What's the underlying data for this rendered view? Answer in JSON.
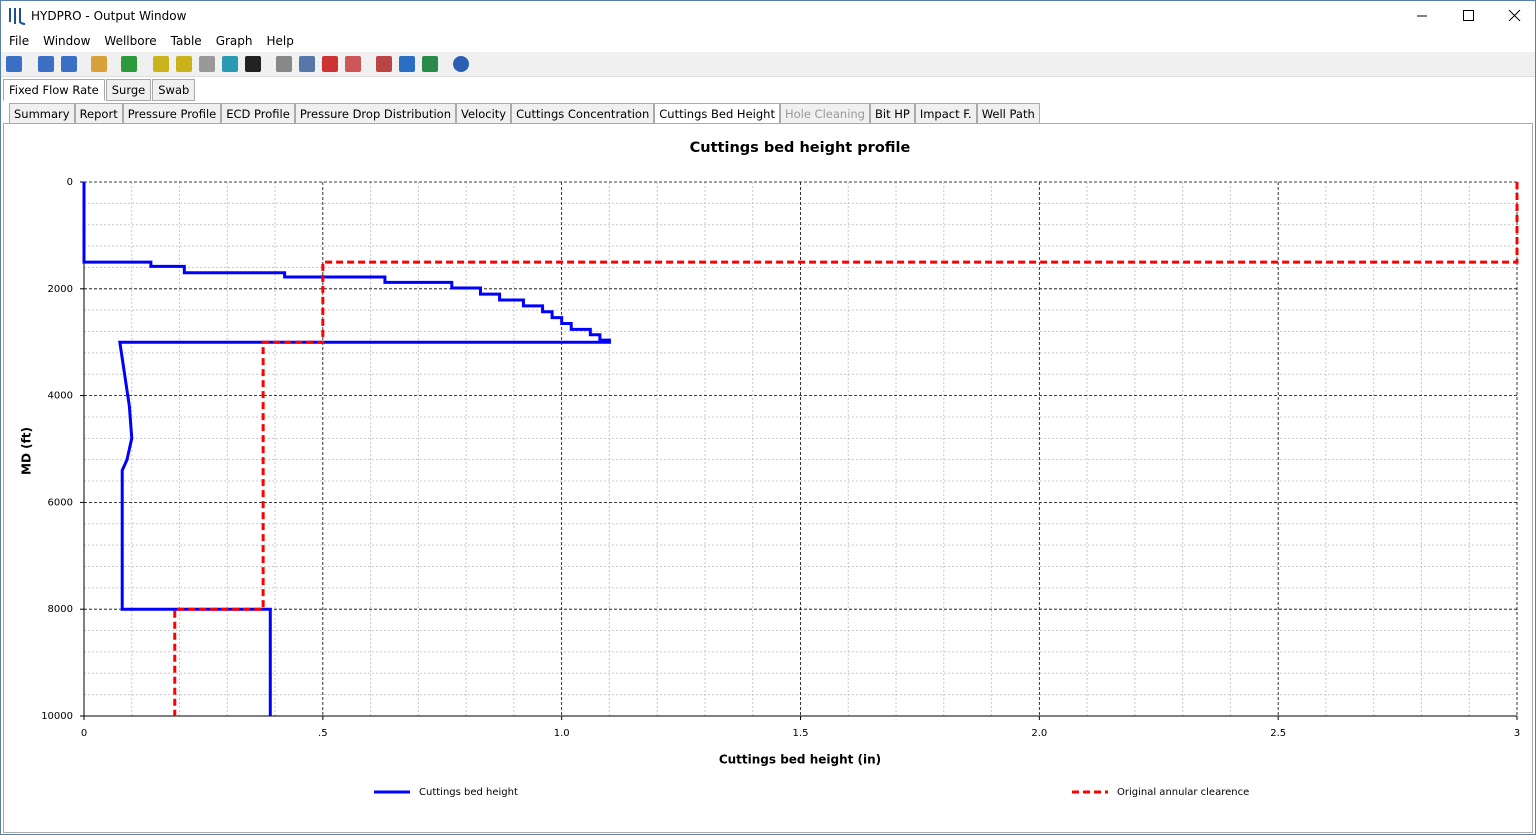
{
  "window": {
    "title": "HYDPRO - Output Window"
  },
  "menu": [
    "File",
    "Window",
    "Wellbore",
    "Table",
    "Graph",
    "Help"
  ],
  "top_tabs": [
    "Fixed Flow Rate",
    "Surge",
    "Swab"
  ],
  "tabs": [
    "Summary",
    "Report",
    "Pressure Profile",
    "ECD Profile",
    "Pressure Drop Distribution",
    "Velocity",
    "Cuttings Concentration",
    "Cuttings Bed Height",
    "Hole Cleaning",
    "Bit HP",
    "Impact F.",
    "Well Path"
  ],
  "chart_data": {
    "type": "line",
    "title": "Cuttings bed height profile",
    "xlabel": "Cuttings bed height (in)",
    "ylabel": "MD (ft)",
    "xlim": [
      0,
      3
    ],
    "xticks": [
      0,
      {
        "value": 0.5,
        "label": ".5"
      },
      {
        "value": 1,
        "label": "1.0"
      },
      1.5,
      {
        "value": 2,
        "label": "2.0"
      },
      2.5,
      3
    ],
    "ylim": [
      0,
      10000
    ],
    "y_inverted": true,
    "yticks": [
      0,
      2000,
      4000,
      6000,
      8000,
      10000
    ],
    "grid": true,
    "minor_divisions": 5,
    "legend": "bottom",
    "series": [
      {
        "name": "Cuttings bed height",
        "color": "#0000ff",
        "dashed": false,
        "md": [
          0,
          1500,
          1500,
          1580,
          1580,
          1700,
          1700,
          1780,
          1780,
          1880,
          1880,
          1985,
          1985,
          2100,
          2100,
          2210,
          2210,
          2320,
          2320,
          2430,
          2430,
          2540,
          2540,
          2650,
          2650,
          2760,
          2760,
          2860,
          2860,
          2960,
          2960,
          3000,
          3000,
          3600,
          4200,
          4800,
          5200,
          5400,
          8000,
          8000,
          10000
        ],
        "values": [
          0,
          0,
          0.14,
          0.14,
          0.21,
          0.21,
          0.42,
          0.42,
          0.63,
          0.63,
          0.77,
          0.77,
          0.83,
          0.83,
          0.87,
          0.87,
          0.92,
          0.92,
          0.96,
          0.96,
          0.98,
          0.98,
          1.0,
          1.0,
          1.02,
          1.02,
          1.06,
          1.06,
          1.08,
          1.08,
          1.1,
          1.1,
          0.075,
          0.085,
          0.095,
          0.1,
          0.09,
          0.08,
          0.08,
          0.39,
          0.39
        ]
      },
      {
        "name": "Original annular clearence",
        "color": "#ff0000",
        "dashed": true,
        "md": [
          0,
          1500,
          1500,
          3000,
          3000,
          8000,
          8000,
          10000
        ],
        "values": [
          3,
          3,
          0.5,
          0.5,
          0.375,
          0.375,
          0.19,
          0.19
        ]
      }
    ]
  }
}
